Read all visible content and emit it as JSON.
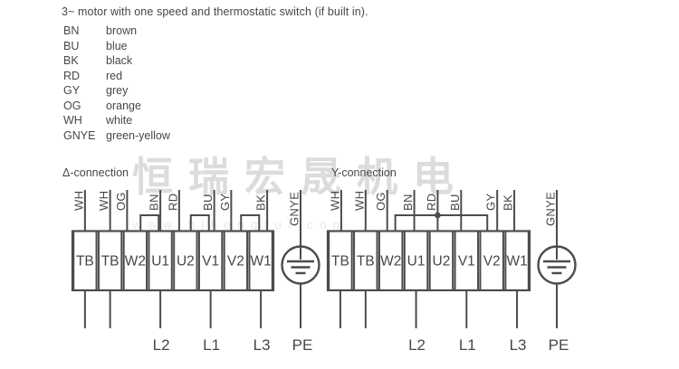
{
  "title": "3~ motor with one speed and thermostatic switch (if built in).",
  "legend": {
    "entries": [
      {
        "abbr": "BN",
        "name": "brown"
      },
      {
        "abbr": "BU",
        "name": "blue"
      },
      {
        "abbr": "BK",
        "name": "black"
      },
      {
        "abbr": "RD",
        "name": "red"
      },
      {
        "abbr": "GY",
        "name": "grey"
      },
      {
        "abbr": "OG",
        "name": "orange"
      },
      {
        "abbr": "WH",
        "name": "white"
      },
      {
        "abbr": "GNYE",
        "name": "green-yellow"
      }
    ]
  },
  "watermark": {
    "main": "恒瑞宏晟机电",
    "sub": "www.hjhengrui.com"
  },
  "colors": {
    "line": "#4c4c4c",
    "text": "#474747",
    "watermark": "#dcdcdc",
    "watermark_sub": "#e9e9e9"
  },
  "diagrams": [
    {
      "id": "delta",
      "label": "Δ-connection",
      "terminals": [
        "TB",
        "TB",
        "W2",
        "U1",
        "U2",
        "V1",
        "V2",
        "W1"
      ],
      "wire_labels": [
        "WH",
        "WH",
        "OG",
        "BN",
        "RD",
        "BU",
        "GY",
        "BK"
      ],
      "jumpers": [
        [
          2,
          3
        ],
        [
          4,
          5
        ],
        [
          6,
          7
        ]
      ],
      "star_bridge": null,
      "bottom": [
        {
          "terminal": 0,
          "label": ""
        },
        {
          "terminal": 1,
          "label": ""
        },
        {
          "terminal": 3,
          "label": "L2"
        },
        {
          "terminal": 5,
          "label": "L1"
        },
        {
          "terminal": 7,
          "label": "L3"
        }
      ],
      "earth": {
        "wire_label": "GNYE",
        "bottom_label": "PE"
      }
    },
    {
      "id": "wye",
      "label": "Y-connection",
      "terminals": [
        "TB",
        "TB",
        "W2",
        "U1",
        "U2",
        "V1",
        "V2",
        "W1"
      ],
      "wire_labels": [
        "WH",
        "WH",
        "OG",
        "BN",
        "RD",
        "BU",
        "GY",
        "BK"
      ],
      "jumpers": [],
      "star_bridge": {
        "from_terminal": 2,
        "to_terminal": 6,
        "junction_wire": 4
      },
      "bottom": [
        {
          "terminal": 0,
          "label": ""
        },
        {
          "terminal": 1,
          "label": ""
        },
        {
          "terminal": 3,
          "label": "L2"
        },
        {
          "terminal": 5,
          "label": "L1"
        },
        {
          "terminal": 7,
          "label": "L3"
        }
      ],
      "earth": {
        "wire_label": "GNYE",
        "bottom_label": "PE"
      }
    }
  ]
}
